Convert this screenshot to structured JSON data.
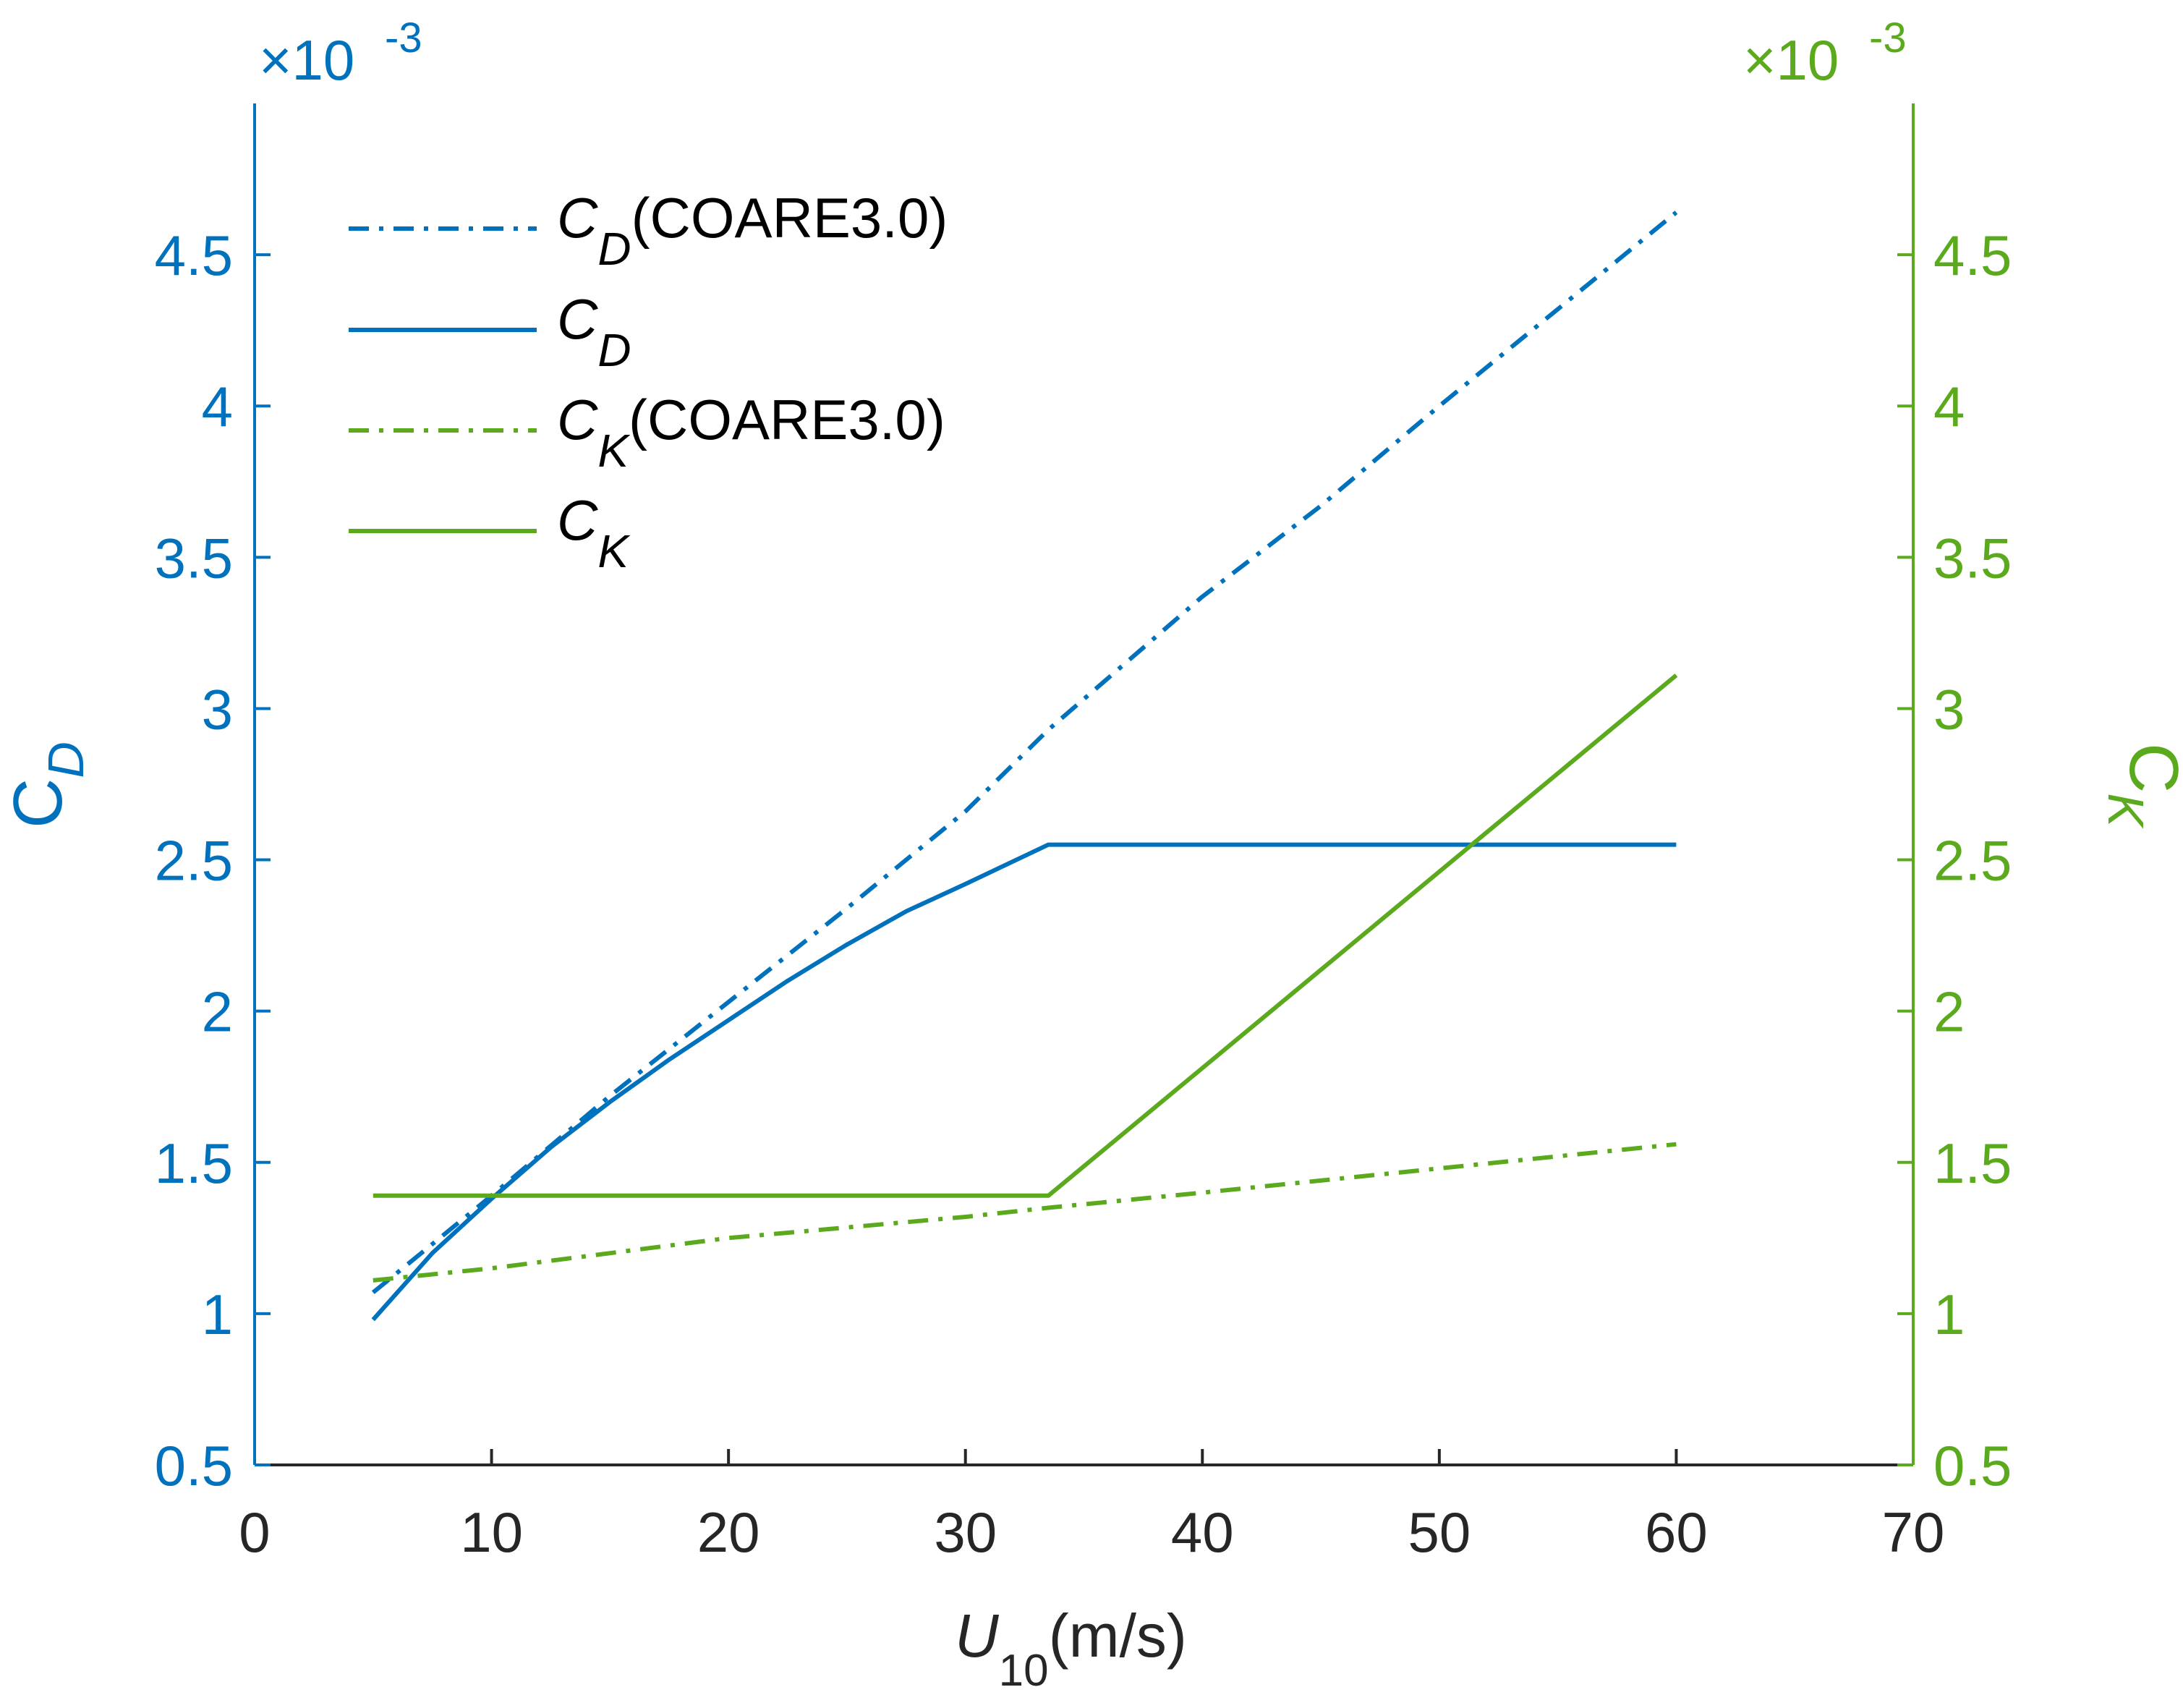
{
  "chart_data": {
    "type": "line",
    "title": "",
    "xlabel": "U",
    "xlabel_subscript": "10",
    "xlabel_unit": "(m/s)",
    "xlim": [
      0,
      70
    ],
    "xticks": [
      0,
      10,
      20,
      30,
      40,
      50,
      60,
      70
    ],
    "xtick_labels": [
      "0",
      "10",
      "20",
      "30",
      "40",
      "50",
      "60",
      "70"
    ],
    "left_axis": {
      "label": "C",
      "label_subscript": "D",
      "ylim": [
        0.5,
        5.0
      ],
      "ticks": [
        0.5,
        1,
        1.5,
        2,
        2.5,
        3,
        3.5,
        4,
        4.5
      ],
      "tick_labels": [
        "0.5",
        "1",
        "1.5",
        "2",
        "2.5",
        "3",
        "3.5",
        "4",
        "4.5"
      ],
      "exponent_label": "×10",
      "exponent": "-3",
      "color": "#0072BD"
    },
    "right_axis": {
      "label": "C",
      "label_subscript": "K",
      "ylim": [
        0.5,
        5.0
      ],
      "ticks": [
        0.5,
        1,
        1.5,
        2,
        2.5,
        3,
        3.5,
        4,
        4.5
      ],
      "tick_labels": [
        "0.5",
        "1",
        "1.5",
        "2",
        "2.5",
        "3",
        "3.5",
        "4",
        "4.5"
      ],
      "exponent_label": "×10",
      "exponent": "-3",
      "color": "#5BAA1E"
    },
    "legend_position": "top-left",
    "series": [
      {
        "name": "C_D(COARE3.0)",
        "legend_main": "C",
        "legend_sub": "D",
        "legend_suffix": "(COARE3.0)",
        "axis": "left",
        "style": "dashdot",
        "color": "#0072BD",
        "x": [
          5,
          10,
          15,
          20,
          25,
          30,
          33.5,
          40,
          45,
          50,
          55,
          60
        ],
        "y": [
          1.07,
          1.39,
          1.72,
          2.03,
          2.34,
          2.66,
          2.93,
          3.37,
          3.67,
          4.0,
          4.32,
          4.64
        ]
      },
      {
        "name": "C_D",
        "legend_main": "C",
        "legend_sub": "D",
        "legend_suffix": "",
        "axis": "left",
        "style": "solid",
        "color": "#0072BD",
        "x": [
          5,
          7.5,
          10,
          12.5,
          15,
          17.5,
          20,
          22.5,
          25,
          27.5,
          30,
          33.5,
          40,
          50,
          60
        ],
        "y": [
          0.98,
          1.2,
          1.38,
          1.55,
          1.7,
          1.84,
          1.97,
          2.1,
          2.22,
          2.33,
          2.42,
          2.55,
          2.55,
          2.55,
          2.55
        ]
      },
      {
        "name": "C_K(COARE3.0)",
        "legend_main": "C",
        "legend_sub": "K",
        "legend_suffix": "(COARE3.0)",
        "axis": "right",
        "style": "dashdot",
        "color": "#5BAA1E",
        "x": [
          5,
          10,
          20,
          30,
          33.5,
          40,
          50,
          60
        ],
        "y": [
          1.11,
          1.15,
          1.25,
          1.32,
          1.35,
          1.4,
          1.48,
          1.56
        ]
      },
      {
        "name": "C_K",
        "legend_main": "C",
        "legend_sub": "K",
        "legend_suffix": "",
        "axis": "right",
        "style": "solid",
        "color": "#5BAA1E",
        "x": [
          5,
          33.5,
          60
        ],
        "y": [
          1.39,
          1.39,
          3.11
        ]
      }
    ]
  }
}
